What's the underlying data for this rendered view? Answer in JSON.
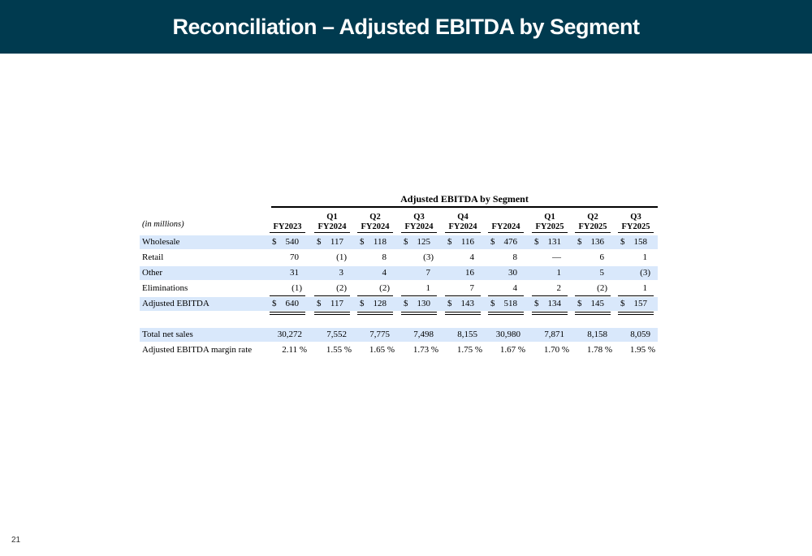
{
  "header": {
    "title": "Reconciliation – Adjusted EBITDA by Segment"
  },
  "table": {
    "group_title": "Adjusted EBITDA by Segment",
    "units_label": "(in millions)",
    "columns": [
      {
        "line1": "",
        "line2": "FY2023"
      },
      {
        "line1": "Q1",
        "line2": "FY2024"
      },
      {
        "line1": "Q2",
        "line2": "FY2024"
      },
      {
        "line1": "Q3",
        "line2": "FY2024"
      },
      {
        "line1": "Q4",
        "line2": "FY2024"
      },
      {
        "line1": "",
        "line2": "FY2024"
      },
      {
        "line1": "Q1",
        "line2": "FY2025"
      },
      {
        "line1": "Q2",
        "line2": "FY2025"
      },
      {
        "line1": "Q3",
        "line2": "FY2025"
      }
    ],
    "rows": [
      {
        "label": "Wholesale",
        "shaded": true,
        "dollar": true,
        "values": [
          "540",
          "117",
          "118",
          "125",
          "116",
          "476",
          "131",
          "136",
          "158"
        ]
      },
      {
        "label": "Retail",
        "shaded": false,
        "dollar": false,
        "values": [
          "70",
          "(1)",
          "8",
          "(3)",
          "4",
          "8",
          "—",
          "6",
          "1"
        ]
      },
      {
        "label": "Other",
        "shaded": true,
        "dollar": false,
        "values": [
          "31",
          "3",
          "4",
          "7",
          "16",
          "30",
          "1",
          "5",
          "(3)"
        ]
      },
      {
        "label": "Eliminations",
        "shaded": false,
        "dollar": false,
        "values": [
          "(1)",
          "(2)",
          "(2)",
          "1",
          "7",
          "4",
          "2",
          "(2)",
          "1"
        ]
      },
      {
        "label": "Adjusted EBITDA",
        "shaded": true,
        "dollar": true,
        "values": [
          "640",
          "117",
          "128",
          "130",
          "143",
          "518",
          "134",
          "145",
          "157"
        ]
      }
    ],
    "dollar_sign": "$",
    "summary_rows": [
      {
        "label": "Total net sales",
        "shaded": true,
        "values": [
          "30,272",
          "7,552",
          "7,775",
          "7,498",
          "8,155",
          "30,980",
          "7,871",
          "8,158",
          "8,059"
        ]
      },
      {
        "label": "Adjusted EBITDA margin rate",
        "shaded": false,
        "values": [
          "2.11 %",
          "1.55 %",
          "1.65 %",
          "1.73 %",
          "1.75 %",
          "1.67 %",
          "1.70 %",
          "1.78 %",
          "1.95 %"
        ]
      }
    ]
  },
  "footer": {
    "page_number": "21"
  }
}
